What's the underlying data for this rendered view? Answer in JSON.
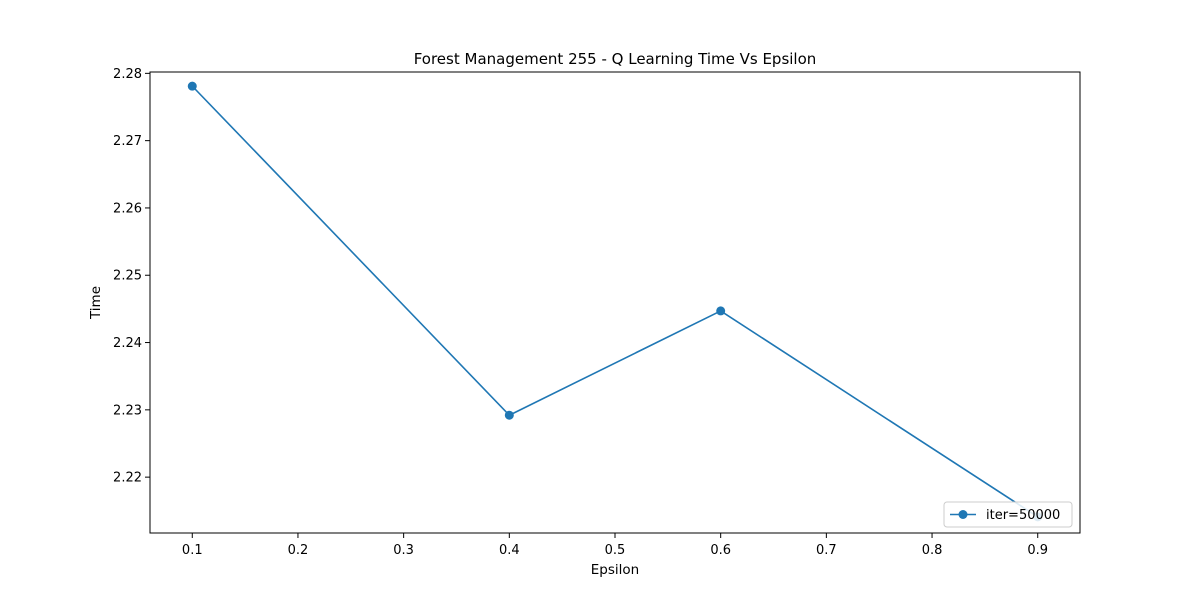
{
  "chart_data": {
    "type": "line",
    "title": "Forest Management 255 - Q Learning Time Vs Epsilon",
    "xlabel": "Epsilon",
    "ylabel": "Time",
    "xlim": [
      0.06,
      0.94
    ],
    "ylim": [
      2.2117,
      2.2802
    ],
    "xticks": [
      0.1,
      0.2,
      0.3,
      0.4,
      0.5,
      0.6,
      0.7,
      0.8,
      0.9
    ],
    "xtick_labels": [
      "0.1",
      "0.2",
      "0.3",
      "0.4",
      "0.5",
      "0.6",
      "0.7",
      "0.8",
      "0.9"
    ],
    "yticks": [
      2.22,
      2.23,
      2.24,
      2.25,
      2.26,
      2.27,
      2.28
    ],
    "ytick_labels": [
      "2.22",
      "2.23",
      "2.24",
      "2.25",
      "2.26",
      "2.27",
      "2.28"
    ],
    "grid": false,
    "legend_position": "lower-right",
    "series": [
      {
        "name": "iter=50000",
        "color": "#1f77b4",
        "marker": "circle",
        "x": [
          0.1,
          0.4,
          0.6,
          0.9
        ],
        "y": [
          2.2781,
          2.2292,
          2.2447,
          2.2141
        ]
      }
    ]
  }
}
